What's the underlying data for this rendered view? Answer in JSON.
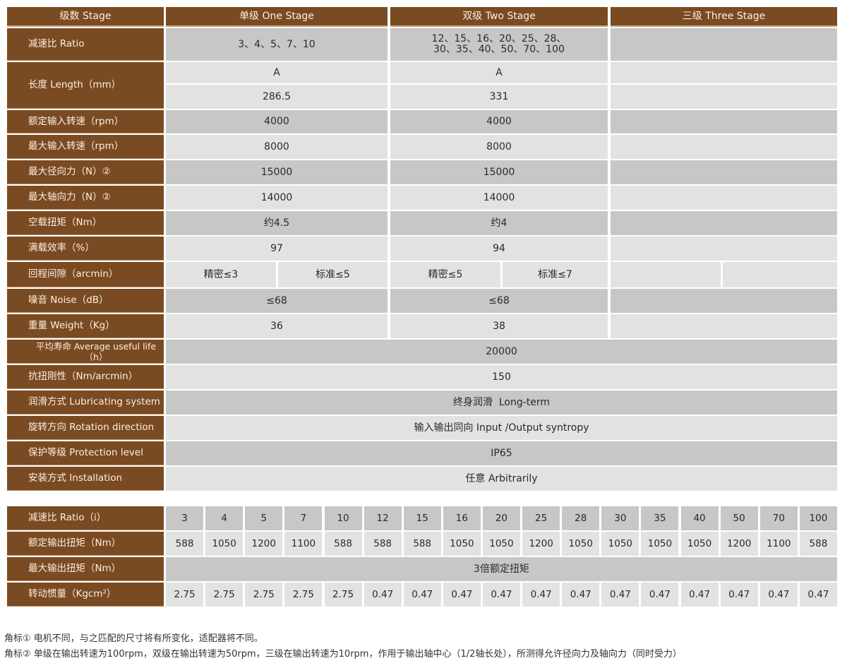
{
  "stage_header": {
    "label": "级数 Stage",
    "one": "单级 One Stage",
    "two": "双级 Two Stage",
    "three": "三级 Three Stage"
  },
  "spec_rows": {
    "ratio": {
      "label": "减速比 Ratio",
      "one": "3、4、5、7、10",
      "two_line1": "12、15、16、20、25、28、",
      "two_line2": "30、35、40、50、70、100"
    },
    "length": {
      "label": "长度 Length（mm）",
      "one_code": "A",
      "two_code": "A",
      "one_value": "286.5",
      "two_value": "331"
    },
    "rated_input_speed": {
      "label": "额定输入转速（rpm）",
      "one": "4000",
      "two": "4000"
    },
    "max_input_speed": {
      "label": "最大输入转速（rpm）",
      "one": "8000",
      "two": "8000"
    },
    "max_radial_force": {
      "label": "最大径向力（N）②",
      "one": "15000",
      "two": "15000"
    },
    "max_axial_force": {
      "label": "最大轴向力（N）②",
      "one": "14000",
      "two": "14000"
    },
    "no_load_torque": {
      "label": "空载扭矩（Nm）",
      "one": "约4.5",
      "two": "约4"
    },
    "efficiency": {
      "label": "满载效率（%）",
      "one": "97",
      "two": "94"
    },
    "backlash": {
      "label": "回程间隙（arcmin）",
      "one_precise": "精密≤3",
      "one_standard": "标准≤5",
      "two_precise": "精密≤5",
      "two_standard": "标准≤7"
    },
    "noise": {
      "label": "噪音 Noise（dB）",
      "one": "≤68",
      "two": "≤68"
    },
    "weight": {
      "label": "重量 Weight（Kg）",
      "one": "36",
      "two": "38"
    },
    "life": {
      "label": "平均寿命 Average useful life（h）",
      "value": "20000"
    },
    "stiffness": {
      "label": "抗扭刚性（Nm/arcmin）",
      "value": "150"
    },
    "lubrication": {
      "label": "润滑方式 Lubricating system",
      "value": "终身润滑  Long-term"
    },
    "rotation": {
      "label": "旋转方向 Rotation direction",
      "value": "输入输出同向 Input /Output syntropy"
    },
    "protection": {
      "label": "保护等级 Protection level",
      "value": "IP65"
    },
    "installation": {
      "label": "安装方式 Installation",
      "value": "任意 Arbitrarily"
    }
  },
  "ratio_table": {
    "ratio_label": "减速比 Ratio（i）",
    "ratios": [
      "3",
      "4",
      "5",
      "7",
      "10",
      "12",
      "15",
      "16",
      "20",
      "25",
      "28",
      "30",
      "35",
      "40",
      "50",
      "70",
      "100"
    ],
    "torque_label": "额定输出扭矩（Nm）",
    "torques": [
      "588",
      "1050",
      "1200",
      "1100",
      "588",
      "588",
      "588",
      "1050",
      "1050",
      "1200",
      "1050",
      "1050",
      "1050",
      "1050",
      "1200",
      "1100",
      "588"
    ],
    "max_torque_label": "最大输出扭矩（Nm）",
    "max_torque_value": "3倍额定扭矩",
    "inertia_label": "转动惯量（Kgcm²）",
    "inertias": [
      "2.75",
      "2.75",
      "2.75",
      "2.75",
      "2.75",
      "0.47",
      "0.47",
      "0.47",
      "0.47",
      "0.47",
      "0.47",
      "0.47",
      "0.47",
      "0.47",
      "0.47",
      "0.47",
      "0.47"
    ]
  },
  "notes": {
    "note1": "角标①  电机不同，与之匹配的尺寸将有所变化，适配器将不同。",
    "note2": "角标②  单级在输出转速为100rpm，双级在输出转速为50rpm，三级在输出转速为10rpm，作用于输出轴中心（1/2轴长处），所测得允许径向力及轴向力（同时受力）"
  }
}
